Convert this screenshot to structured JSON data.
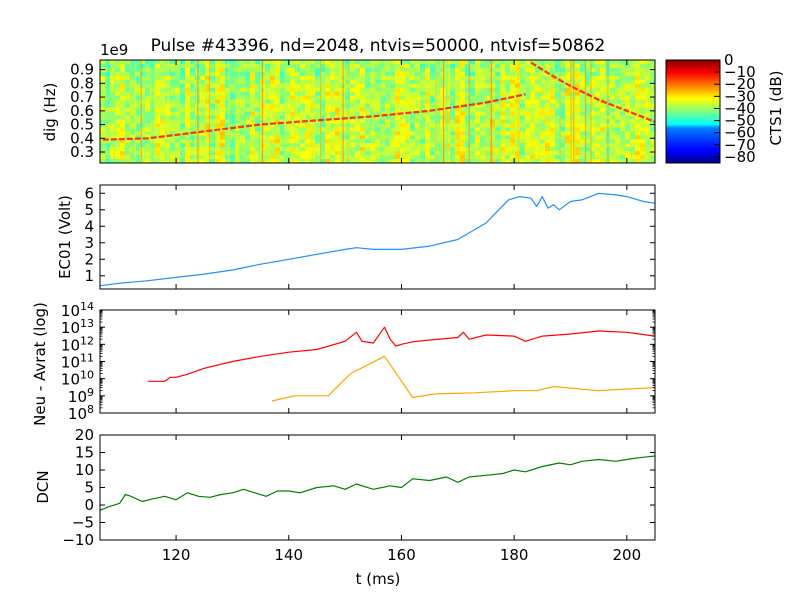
{
  "figure": {
    "title": "Pulse #43396, nd=2048, ntvis=50000, ntvisf=50862",
    "xlabel": "t (ms)",
    "x_ticks": [
      "120",
      "140",
      "160",
      "180",
      "200"
    ]
  },
  "chart_data": [
    {
      "type": "heatmap",
      "title": "Pulse #43396, nd=2048, ntvis=50000, ntvisf=50862",
      "ylabel": "dig (Hz)",
      "offset_label": "1e9",
      "y_ticks": [
        "0.3",
        "0.4",
        "0.5",
        "0.6",
        "0.7",
        "0.8",
        "0.9"
      ],
      "xlim": [
        106.5,
        205
      ],
      "ylim": [
        0.22,
        0.97
      ],
      "colormap": "jet",
      "colorbar": {
        "label": "CTS1 (dB)",
        "range": [
          -85,
          0
        ],
        "ticks": [
          "0",
          "−10",
          "−20",
          "−30",
          "−40",
          "−50",
          "−60",
          "−70",
          "−80"
        ]
      },
      "features": [
        {
          "kind": "ridge",
          "t": [
            107,
            115,
            125,
            135,
            145,
            155,
            165,
            175,
            182
          ],
          "f": [
            0.39,
            0.4,
            0.45,
            0.5,
            0.53,
            0.56,
            0.6,
            0.66,
            0.72
          ]
        },
        {
          "kind": "ridge",
          "t": [
            183,
            187,
            190,
            195,
            200,
            205
          ],
          "f": [
            0.95,
            0.85,
            0.78,
            0.68,
            0.6,
            0.52
          ]
        }
      ]
    },
    {
      "type": "line",
      "ylabel": "EC01 (Volt)",
      "y_ticks": [
        "1",
        "2",
        "3",
        "4",
        "5",
        "6"
      ],
      "xlim": [
        106.5,
        205
      ],
      "ylim": [
        0.2,
        6.5
      ],
      "series": [
        {
          "color": "#1e90ff",
          "x": [
            106.5,
            110,
            115,
            120,
            125,
            130,
            135,
            140,
            145,
            150,
            152,
            155,
            160,
            165,
            170,
            172,
            175,
            177,
            179,
            181,
            183,
            184,
            185,
            186,
            187,
            188,
            190,
            192,
            195,
            198,
            200,
            203,
            205
          ],
          "y": [
            0.4,
            0.55,
            0.7,
            0.9,
            1.1,
            1.35,
            1.7,
            2.0,
            2.3,
            2.6,
            2.7,
            2.6,
            2.6,
            2.8,
            3.2,
            3.6,
            4.2,
            4.9,
            5.6,
            5.8,
            5.7,
            5.2,
            5.8,
            5.1,
            5.3,
            5.0,
            5.5,
            5.6,
            6.0,
            5.9,
            5.8,
            5.5,
            5.4
          ]
        }
      ]
    },
    {
      "type": "line",
      "ylabel": "Neu - Avrat (log)",
      "y_scale": "log",
      "y_ticks": [
        "10^8",
        "10^9",
        "10^10",
        "10^11",
        "10^12",
        "10^13",
        "10^14"
      ],
      "xlim": [
        106.5,
        205
      ],
      "ylim": [
        100000000.0,
        100000000000000.0
      ],
      "series": [
        {
          "color": "#ff0000",
          "x": [
            115,
            118,
            119,
            120,
            122,
            125,
            130,
            135,
            140,
            145,
            150,
            152,
            153,
            155,
            157,
            158,
            159,
            160,
            162,
            165,
            170,
            171,
            172,
            175,
            180,
            182,
            185,
            190,
            195,
            200,
            205
          ],
          "y": [
            7000000000.0,
            7000000000.0,
            12000000000.0,
            12000000000.0,
            18000000000.0,
            40000000000.0,
            100000000000.0,
            200000000000.0,
            350000000000.0,
            500000000000.0,
            1500000000000.0,
            5000000000000.0,
            1500000000000.0,
            1200000000000.0,
            10000000000000.0,
            2000000000000.0,
            800000000000.0,
            1000000000000.0,
            1400000000000.0,
            1800000000000.0,
            2500000000000.0,
            5000000000000.0,
            2000000000000.0,
            3500000000000.0,
            3000000000000.0,
            1500000000000.0,
            3000000000000.0,
            4000000000000.0,
            6000000000000.0,
            5000000000000.0,
            3000000000000.0
          ]
        },
        {
          "color": "#ffa500",
          "x": [
            137,
            141,
            147,
            151,
            157,
            162,
            166,
            173,
            180,
            184,
            187,
            195,
            200,
            205
          ],
          "y": [
            500000000.0,
            1000000000.0,
            1000000000.0,
            20000000000.0,
            200000000000.0,
            800000000.0,
            1300000000.0,
            1500000000.0,
            2000000000.0,
            2000000000.0,
            3500000000.0,
            2000000000.0,
            2500000000.0,
            3000000000.0
          ]
        }
      ]
    },
    {
      "type": "line",
      "ylabel": "DCN",
      "y_ticks": [
        "−10",
        "−5",
        "0",
        "5",
        "10",
        "15",
        "20"
      ],
      "xlim": [
        106.5,
        205
      ],
      "ylim": [
        -10,
        20
      ],
      "series": [
        {
          "color": "#008000",
          "x": [
            106.5,
            108,
            110,
            111,
            112,
            114,
            116,
            118,
            120,
            122,
            124,
            126,
            128,
            130,
            132,
            134,
            136,
            138,
            140,
            142,
            145,
            148,
            150,
            152,
            155,
            158,
            160,
            162,
            165,
            168,
            170,
            172,
            175,
            178,
            180,
            182,
            185,
            188,
            190,
            192,
            195,
            198,
            200,
            202,
            205
          ],
          "y": [
            -1.5,
            -0.5,
            0.5,
            3,
            2.5,
            1,
            1.8,
            2.5,
            1.5,
            3.5,
            2.5,
            2.2,
            3.0,
            3.5,
            4.5,
            3.5,
            2.5,
            4.0,
            4.0,
            3.5,
            5.0,
            5.5,
            4.5,
            6.0,
            4.5,
            5.5,
            5.0,
            7.5,
            7.0,
            8.0,
            6.5,
            8.0,
            8.5,
            9.0,
            10.0,
            9.5,
            11.0,
            12.0,
            11.5,
            12.5,
            13.0,
            12.5,
            13.0,
            13.5,
            14.0
          ]
        }
      ]
    }
  ]
}
